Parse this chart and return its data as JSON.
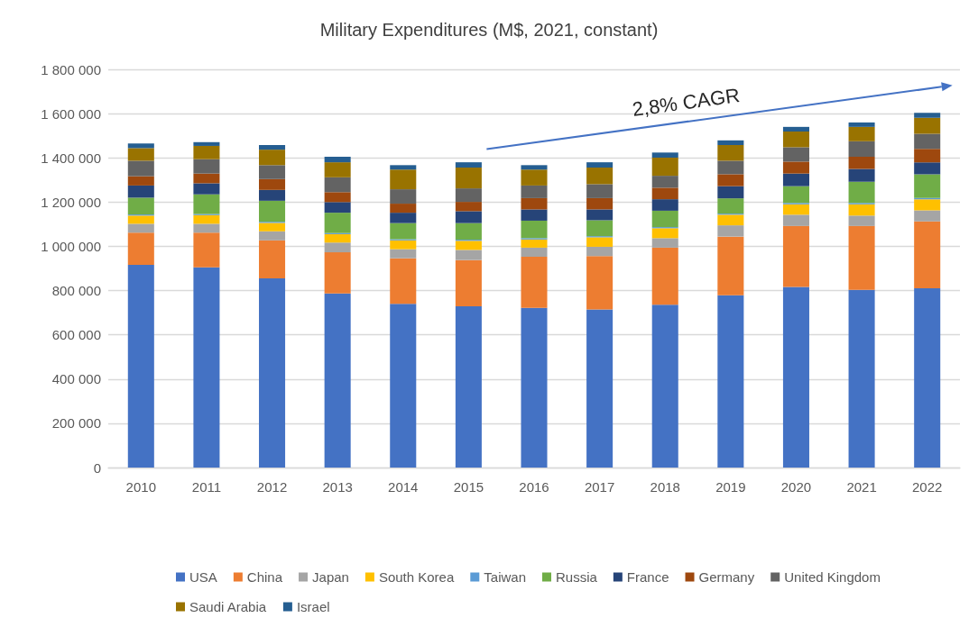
{
  "chart_data": {
    "type": "bar",
    "title": "Military Expenditures (M$, 2021, constant)",
    "stacked": true,
    "grid": "y",
    "legend": "bottom",
    "categories": [
      "2010",
      "2011",
      "2012",
      "2013",
      "2014",
      "2015",
      "2016",
      "2017",
      "2018",
      "2019",
      "2020",
      "2021",
      "2022"
    ],
    "ylim": [
      0,
      1800000
    ],
    "yticks": [
      {
        "value": 0,
        "label": "0"
      },
      {
        "value": 200000,
        "label": "200 000"
      },
      {
        "value": 400000,
        "label": "400 000"
      },
      {
        "value": 600000,
        "label": "600 000"
      },
      {
        "value": 800000,
        "label": "800 000"
      },
      {
        "value": 1000000,
        "label": "1 000 000"
      },
      {
        "value": 1200000,
        "label": "1 200 000"
      },
      {
        "value": 1400000,
        "label": "1 400 000"
      },
      {
        "value": 1600000,
        "label": "1 600 000"
      },
      {
        "value": 1800000,
        "label": "1 800 000"
      }
    ],
    "annotations": [
      "2,8% CAGR"
    ],
    "series": [
      {
        "name": "USA",
        "color": "#4472c4",
        "values": [
          916000,
          905000,
          855000,
          787000,
          740000,
          729000,
          722000,
          715000,
          736000,
          779000,
          817000,
          803000,
          810000
        ]
      },
      {
        "name": "China",
        "color": "#ed7d31",
        "values": [
          146000,
          157000,
          172000,
          186000,
          206000,
          209000,
          231000,
          241000,
          258000,
          265000,
          275000,
          289000,
          303000
        ]
      },
      {
        "name": "Japan",
        "color": "#a5a5a5",
        "values": [
          40000,
          40000,
          41000,
          44000,
          41000,
          46000,
          41000,
          42000,
          43000,
          51000,
          51000,
          47000,
          50000
        ]
      },
      {
        "name": "South Korea",
        "color": "#ffc000",
        "values": [
          37000,
          39000,
          38000,
          38000,
          40000,
          41000,
          37000,
          43000,
          45000,
          48000,
          47000,
          51000,
          50000
        ]
      },
      {
        "name": "Taiwan",
        "color": "#5b9bd5",
        "values": [
          5000,
          5000,
          5000,
          5000,
          5000,
          5000,
          6000,
          5000,
          5000,
          5000,
          6000,
          6000,
          6000
        ]
      },
      {
        "name": "Russia",
        "color": "#70ad47",
        "values": [
          76000,
          89000,
          95000,
          92000,
          73000,
          75000,
          79000,
          72000,
          74000,
          69000,
          76000,
          96000,
          107000
        ]
      },
      {
        "name": "France",
        "color": "#264478",
        "values": [
          55000,
          50000,
          49000,
          48000,
          47000,
          54000,
          51000,
          49000,
          52000,
          55000,
          57000,
          58000,
          54000
        ]
      },
      {
        "name": "Germany",
        "color": "#9e480e",
        "values": [
          42000,
          44000,
          49000,
          45000,
          41000,
          42000,
          51000,
          51000,
          52000,
          54000,
          54000,
          55000,
          61000
        ]
      },
      {
        "name": "United Kingdom",
        "color": "#636363",
        "values": [
          70000,
          65000,
          63000,
          67000,
          65000,
          61000,
          57000,
          63000,
          54000,
          61000,
          65000,
          70000,
          68000
        ]
      },
      {
        "name": "Saudi Arabia",
        "color": "#997300",
        "values": [
          57000,
          60000,
          70000,
          68000,
          89000,
          94000,
          72000,
          75000,
          82000,
          71000,
          71000,
          65000,
          72000
        ]
      },
      {
        "name": "Israel",
        "color": "#255e91",
        "values": [
          21000,
          17000,
          21000,
          25000,
          20000,
          24000,
          20000,
          24000,
          23000,
          21000,
          21000,
          20000,
          23000
        ]
      }
    ]
  }
}
